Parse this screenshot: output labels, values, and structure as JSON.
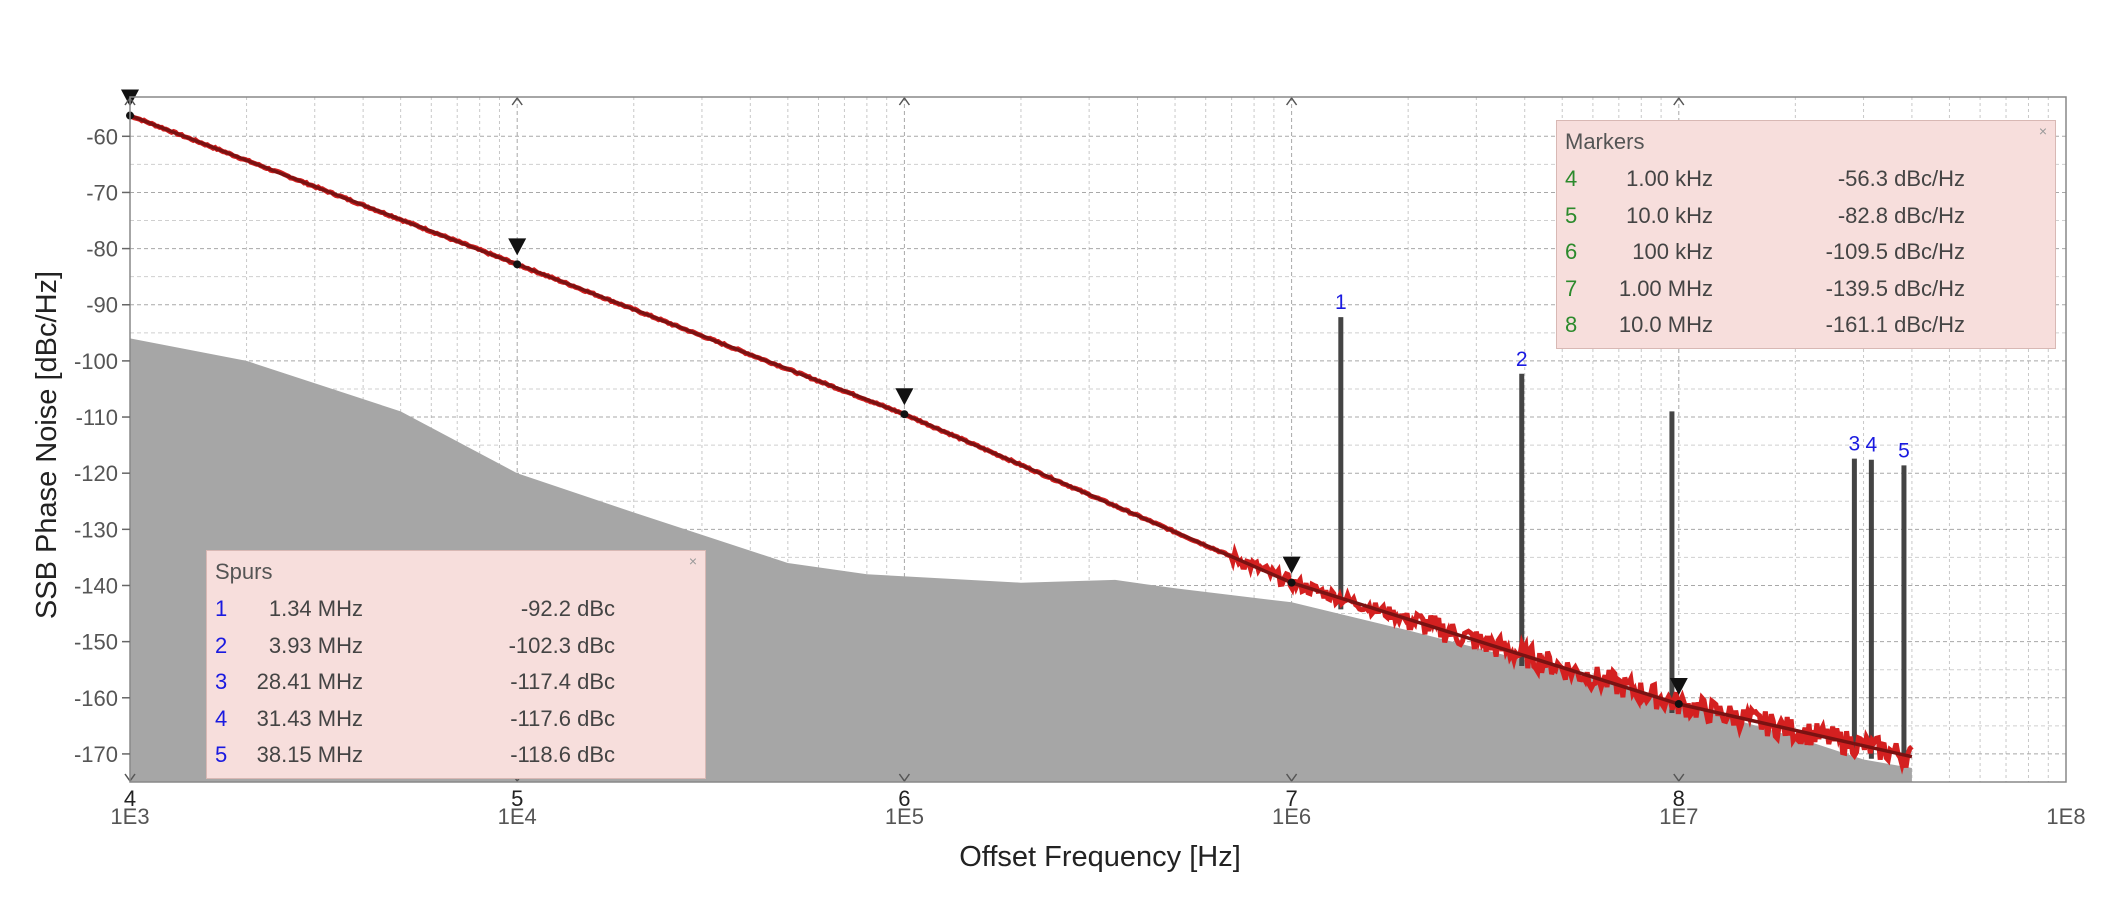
{
  "chart_data": {
    "type": "line",
    "xlabel": "Offset Frequency [Hz]",
    "ylabel": "SSB Phase Noise [dBc/Hz]",
    "x_scale": "log",
    "xlim": [
      1000,
      100000000
    ],
    "ylim": [
      -175,
      -53
    ],
    "x_tick_labels": [
      "1E3",
      "1E4",
      "1E5",
      "1E6",
      "1E7",
      "1E8"
    ],
    "y_tick_labels": [
      "-60",
      "-70",
      "-80",
      "-90",
      "-100",
      "-110",
      "-120",
      "-130",
      "-140",
      "-150",
      "-160",
      "-170"
    ],
    "grid": true,
    "colors": {
      "trace": "#d42020",
      "smooth": "#7a1212",
      "floor": "#a6a6a6",
      "spur": "#444444",
      "spur_label": "#1a1ae0",
      "marker_num": "#2c8a2c"
    },
    "series": [
      {
        "points": [
          [
            1000,
            -56.3
          ],
          [
            10000,
            -82.8
          ],
          [
            100000,
            -109.5
          ],
          [
            1000000,
            -139.5
          ],
          [
            10000000,
            -161.1
          ],
          [
            40000000,
            -170.5
          ]
        ]
      }
    ],
    "noise_floor": [
      [
        1000,
        -96
      ],
      [
        2000,
        -100
      ],
      [
        5000,
        -109
      ],
      [
        10000,
        -120
      ],
      [
        20000,
        -127
      ],
      [
        50000,
        -136
      ],
      [
        80000,
        -138
      ],
      [
        200000,
        -139.5
      ],
      [
        350000,
        -139
      ],
      [
        500000,
        -140.5
      ],
      [
        1000000,
        -143
      ],
      [
        2000000,
        -148
      ],
      [
        5000000,
        -155
      ],
      [
        10000000,
        -161
      ],
      [
        20000000,
        -167
      ],
      [
        30000000,
        -171
      ],
      [
        40000000,
        -172.5
      ]
    ],
    "spurs": [
      {
        "label": "1",
        "freq": 1340000,
        "level": -92.2
      },
      {
        "label": "2",
        "freq": 3930000,
        "level": -102.3
      },
      {
        "label": "",
        "freq": 9600000,
        "level": -109
      },
      {
        "label": "3",
        "freq": 28410000,
        "level": -117.4
      },
      {
        "label": "4",
        "freq": 31430000,
        "level": -117.6
      },
      {
        "label": "5",
        "freq": 38150000,
        "level": -118.6
      }
    ],
    "markers": [
      {
        "label": "4",
        "freq": 1000,
        "level": -56.3
      },
      {
        "label": "5",
        "freq": 10000,
        "level": -82.8
      },
      {
        "label": "6",
        "freq": 100000,
        "level": -109.5
      },
      {
        "label": "7",
        "freq": 1000000,
        "level": -139.5
      },
      {
        "label": "8",
        "freq": 10000000,
        "level": -161.1
      }
    ]
  },
  "markers_table": {
    "title": "Markers",
    "close": "×",
    "rows": [
      {
        "num": "4",
        "freq": "1.00 kHz",
        "value": "-56.3 dBc/Hz"
      },
      {
        "num": "5",
        "freq": "10.0 kHz",
        "value": "-82.8 dBc/Hz"
      },
      {
        "num": "6",
        "freq": "100 kHz",
        "value": "-109.5 dBc/Hz"
      },
      {
        "num": "7",
        "freq": "1.00 MHz",
        "value": "-139.5 dBc/Hz"
      },
      {
        "num": "8",
        "freq": "10.0 MHz",
        "value": "-161.1 dBc/Hz"
      }
    ]
  },
  "spurs_table": {
    "title": "Spurs",
    "close": "×",
    "rows": [
      {
        "num": "1",
        "freq": "1.34 MHz",
        "value": "-92.2 dBc"
      },
      {
        "num": "2",
        "freq": "3.93 MHz",
        "value": "-102.3 dBc"
      },
      {
        "num": "3",
        "freq": "28.41 MHz",
        "value": "-117.4 dBc"
      },
      {
        "num": "4",
        "freq": "31.43 MHz",
        "value": "-117.6 dBc"
      },
      {
        "num": "5",
        "freq": "38.15 MHz",
        "value": "-118.6 dBc"
      }
    ]
  }
}
